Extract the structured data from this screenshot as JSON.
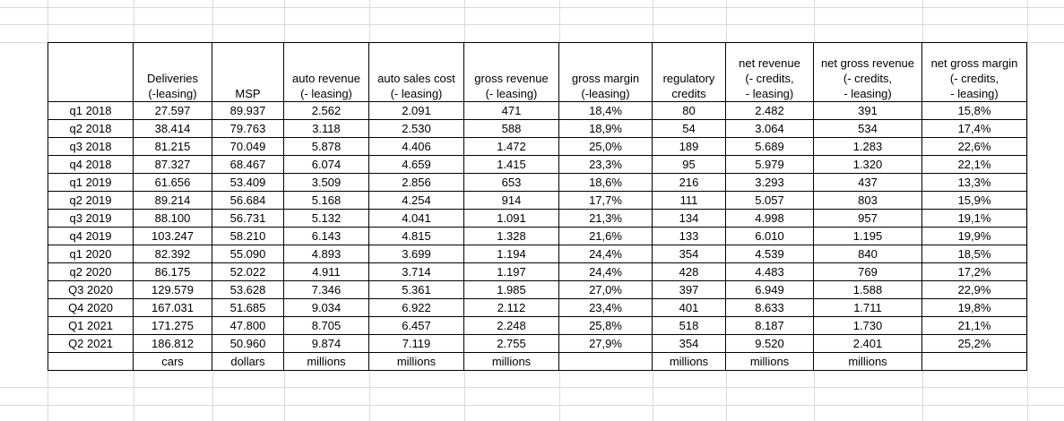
{
  "headers": [
    "",
    "Deliveries\n(-leasing)",
    "MSP",
    "auto revenue\n(- leasing)",
    "auto sales cost\n(- leasing)",
    "gross revenue\n(- leasing)",
    "gross margin\n(-leasing)",
    "regulatory\ncredits",
    "net revenue\n(- credits,\n- leasing)",
    "net gross revenue\n(- credits,\n- leasing)",
    "net  gross margin\n(- credits,\n- leasing)"
  ],
  "rows": [
    [
      "q1 2018",
      "27.597",
      "89.937",
      "2.562",
      "2.091",
      "471",
      "18,4%",
      "80",
      "2.482",
      "391",
      "15,8%"
    ],
    [
      "q2 2018",
      "38.414",
      "79.763",
      "3.118",
      "2.530",
      "588",
      "18,9%",
      "54",
      "3.064",
      "534",
      "17,4%"
    ],
    [
      "q3 2018",
      "81.215",
      "70.049",
      "5.878",
      "4.406",
      "1.472",
      "25,0%",
      "189",
      "5.689",
      "1.283",
      "22,6%"
    ],
    [
      "q4 2018",
      "87.327",
      "68.467",
      "6.074",
      "4.659",
      "1.415",
      "23,3%",
      "95",
      "5.979",
      "1.320",
      "22,1%"
    ],
    [
      "q1 2019",
      "61.656",
      "53.409",
      "3.509",
      "2.856",
      "653",
      "18,6%",
      "216",
      "3.293",
      "437",
      "13,3%"
    ],
    [
      "q2 2019",
      "89.214",
      "56.684",
      "5.168",
      "4.254",
      "914",
      "17,7%",
      "111",
      "5.057",
      "803",
      "15,9%"
    ],
    [
      "q3 2019",
      "88.100",
      "56.731",
      "5.132",
      "4.041",
      "1.091",
      "21,3%",
      "134",
      "4.998",
      "957",
      "19,1%"
    ],
    [
      "q4 2019",
      "103.247",
      "58.210",
      "6.143",
      "4.815",
      "1.328",
      "21,6%",
      "133",
      "6.010",
      "1.195",
      "19,9%"
    ],
    [
      "q1 2020",
      "82.392",
      "55.090",
      "4.893",
      "3.699",
      "1.194",
      "24,4%",
      "354",
      "4.539",
      "840",
      "18,5%"
    ],
    [
      "q2 2020",
      "86.175",
      "52.022",
      "4.911",
      "3.714",
      "1.197",
      "24,4%",
      "428",
      "4.483",
      "769",
      "17,2%"
    ],
    [
      "Q3 2020",
      "129.579",
      "53.628",
      "7.346",
      "5.361",
      "1.985",
      "27,0%",
      "397",
      "6.949",
      "1.588",
      "22,9%"
    ],
    [
      "Q4 2020",
      "167.031",
      "51.685",
      "9.034",
      "6.922",
      "2.112",
      "23,4%",
      "401",
      "8.633",
      "1.711",
      "19,8%"
    ],
    [
      "Q1 2021",
      "171.275",
      "47.800",
      "8.705",
      "6.457",
      "2.248",
      "25,8%",
      "518",
      "8.187",
      "1.730",
      "21,1%"
    ],
    [
      "Q2 2021",
      "186.812",
      "50.960",
      "9.874",
      "7.119",
      "2.755",
      "27,9%",
      "354",
      "9.520",
      "2.401",
      "25,2%"
    ]
  ],
  "units": [
    "",
    "cars",
    "dollars",
    "millions",
    "millions",
    "millions",
    "",
    "millions",
    "millions",
    "millions",
    ""
  ]
}
